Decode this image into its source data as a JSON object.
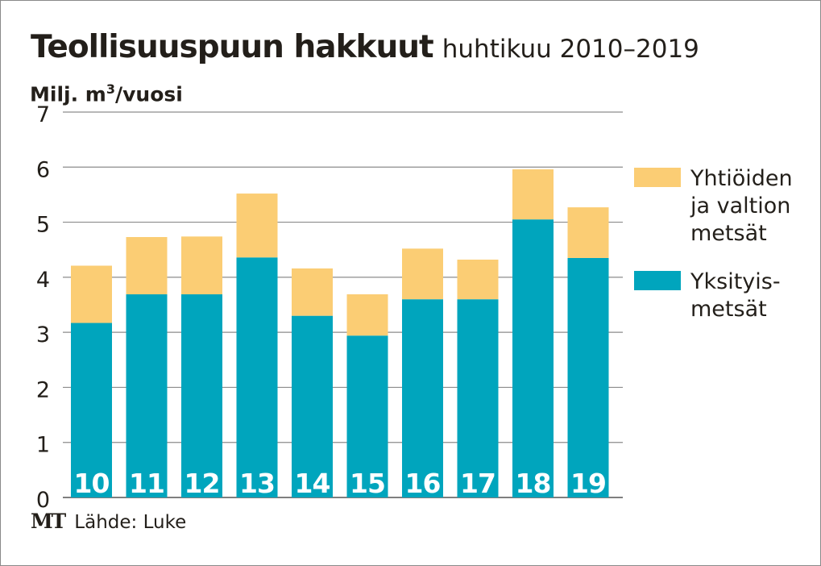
{
  "chart_data": {
    "type": "bar",
    "stacked": true,
    "title": "Teollisuuspuun hakkuut",
    "subtitle": "huhtikuu 2010–2019",
    "ylabel": "Milj. m³/vuosi",
    "ylabel_parts": {
      "prefix": "Milj. m",
      "sup": "3",
      "suffix": "/vuosi"
    },
    "ylim": [
      0,
      7
    ],
    "yticks": [
      "0",
      "1",
      "2",
      "3",
      "4",
      "5",
      "6",
      "7"
    ],
    "grid": true,
    "legend_position": "right",
    "categories": [
      "10",
      "11",
      "12",
      "13",
      "14",
      "15",
      "16",
      "17",
      "18",
      "19"
    ],
    "series": [
      {
        "name": "Yksityis-metsät",
        "legend_lines": [
          "Yksityis-",
          "metsät"
        ],
        "color": "#00a5bd",
        "values": [
          3.17,
          3.69,
          3.69,
          4.36,
          3.3,
          2.94,
          3.6,
          3.6,
          5.05,
          4.35
        ]
      },
      {
        "name": "Yhtiöiden ja valtion metsät",
        "legend_lines": [
          "Yhtiöiden",
          "ja valtion",
          "metsät"
        ],
        "color": "#fbcd74",
        "values": [
          1.04,
          1.04,
          1.05,
          1.16,
          0.86,
          0.75,
          0.92,
          0.72,
          0.91,
          0.92
        ]
      }
    ]
  },
  "source": {
    "logo": "MT",
    "text": "Lähde: Luke"
  }
}
